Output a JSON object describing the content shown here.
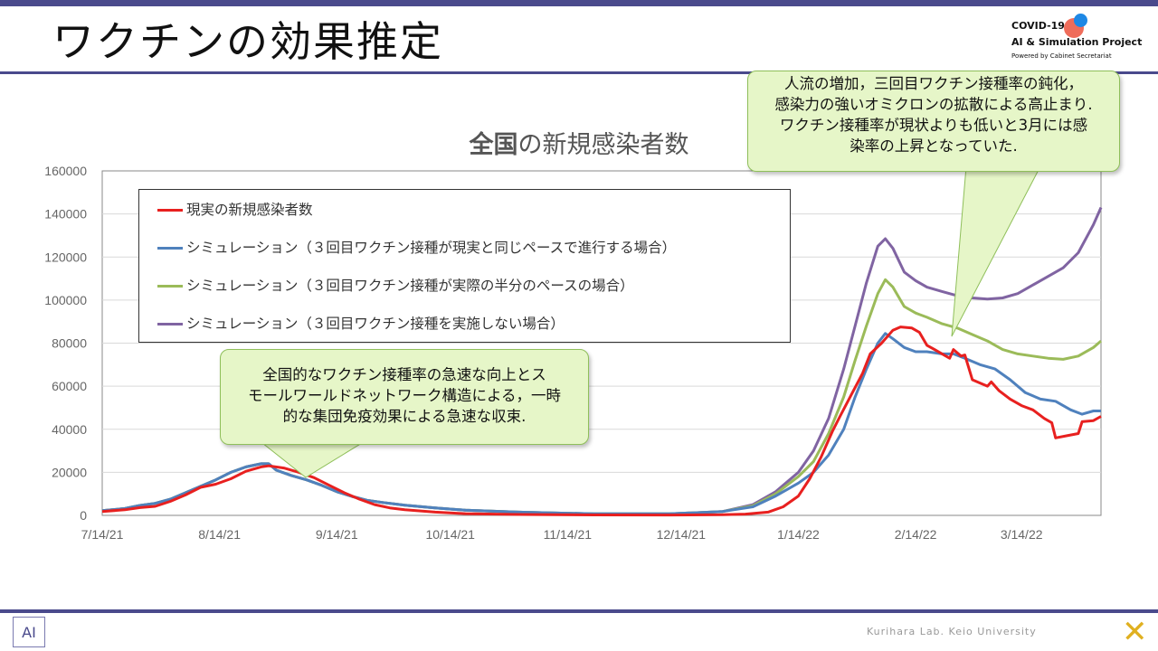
{
  "header": {
    "title": "ワクチンの効果推定",
    "logo_line1": "COVID-19",
    "logo_line2": "AI & Simulation Project",
    "logo_line3": "Powered by Cabinet Secretariat"
  },
  "callouts": {
    "right_lines": [
      "人流の増加，三回目ワクチン接種率の鈍化，",
      "感染力の強いオミクロンの拡散による高止まり.",
      "ワクチン接種率が現状よりも低いと3月には感",
      "染率の上昇となっていた."
    ],
    "left_lines": [
      "全国的なワクチン接種率の急速な向上とス",
      "モールワールドネットワーク構造による，一時",
      "的な集団免疫効果による急速な収束."
    ]
  },
  "footer": {
    "credit": "Kurihara Lab. Keio University",
    "left_logo": "AI",
    "right_logo": "✕"
  },
  "chart_data": {
    "type": "line",
    "title_bold": "全国",
    "title_rest": "の新規感染者数",
    "xlabel": "",
    "ylabel": "",
    "ylim": [
      0,
      160000
    ],
    "yticks": [
      "0",
      "20000",
      "40000",
      "60000",
      "80000",
      "100000",
      "120000",
      "140000",
      "160000"
    ],
    "xlim": [
      0,
      264
    ],
    "xtick_labels": [
      "7/14/21",
      "8/14/21",
      "9/14/21",
      "10/14/21",
      "11/14/21",
      "12/14/21",
      "1/14/22",
      "2/14/22",
      "3/14/22"
    ],
    "xtick_days": [
      0,
      31,
      62,
      92,
      123,
      153,
      184,
      215,
      243
    ],
    "grid": "horizontal",
    "legend_position": "top-left inside",
    "series": [
      {
        "name": "現実の新規感染者数",
        "color": "#e8201f",
        "points": [
          [
            0,
            1800
          ],
          [
            6,
            2600
          ],
          [
            10,
            3600
          ],
          [
            14,
            4200
          ],
          [
            18,
            6500
          ],
          [
            22,
            9500
          ],
          [
            26,
            13000
          ],
          [
            30,
            14500
          ],
          [
            34,
            17000
          ],
          [
            38,
            20500
          ],
          [
            42,
            22500
          ],
          [
            44,
            23000
          ],
          [
            48,
            22000
          ],
          [
            52,
            20000
          ],
          [
            56,
            17500
          ],
          [
            60,
            14000
          ],
          [
            64,
            10500
          ],
          [
            68,
            7500
          ],
          [
            72,
            5000
          ],
          [
            76,
            3500
          ],
          [
            80,
            2600
          ],
          [
            88,
            1500
          ],
          [
            96,
            800
          ],
          [
            110,
            400
          ],
          [
            130,
            200
          ],
          [
            150,
            180
          ],
          [
            164,
            300
          ],
          [
            170,
            600
          ],
          [
            176,
            1500
          ],
          [
            180,
            4000
          ],
          [
            184,
            9000
          ],
          [
            187,
            17000
          ],
          [
            190,
            27000
          ],
          [
            193,
            39000
          ],
          [
            195,
            46000
          ],
          [
            198,
            56000
          ],
          [
            201,
            66000
          ],
          [
            203,
            75000
          ],
          [
            206,
            80000
          ],
          [
            209,
            86000
          ],
          [
            211,
            87500
          ],
          [
            214,
            87000
          ],
          [
            216,
            85000
          ],
          [
            218,
            79000
          ],
          [
            220,
            77000
          ],
          [
            222,
            75000
          ],
          [
            224,
            73000
          ],
          [
            225,
            77000
          ],
          [
            227,
            74000
          ],
          [
            228,
            74500
          ],
          [
            230,
            63000
          ],
          [
            232,
            61500
          ],
          [
            234,
            60000
          ],
          [
            235,
            62000
          ],
          [
            237,
            58000
          ],
          [
            240,
            54000
          ],
          [
            243,
            51000
          ],
          [
            246,
            49000
          ],
          [
            249,
            45000
          ],
          [
            251,
            43000
          ],
          [
            252,
            36000
          ],
          [
            255,
            37000
          ],
          [
            258,
            38000
          ],
          [
            259,
            43500
          ],
          [
            262,
            44000
          ],
          [
            264,
            46000
          ]
        ]
      },
      {
        "name": "シミュレーション（３回目ワクチン接種が現実と同じペースで進行する場合）",
        "color": "#4f81bd",
        "points": [
          [
            0,
            2200
          ],
          [
            6,
            3200
          ],
          [
            10,
            4600
          ],
          [
            14,
            5600
          ],
          [
            18,
            7500
          ],
          [
            22,
            10500
          ],
          [
            26,
            13500
          ],
          [
            30,
            16500
          ],
          [
            34,
            20000
          ],
          [
            38,
            22500
          ],
          [
            42,
            24000
          ],
          [
            44,
            24000
          ],
          [
            46,
            21000
          ],
          [
            50,
            18500
          ],
          [
            54,
            16500
          ],
          [
            58,
            14000
          ],
          [
            62,
            11000
          ],
          [
            66,
            8800
          ],
          [
            70,
            7000
          ],
          [
            74,
            6000
          ],
          [
            80,
            4700
          ],
          [
            88,
            3500
          ],
          [
            96,
            2400
          ],
          [
            110,
            1500
          ],
          [
            130,
            700
          ],
          [
            150,
            700
          ],
          [
            164,
            1800
          ],
          [
            172,
            4000
          ],
          [
            178,
            9000
          ],
          [
            184,
            15000
          ],
          [
            188,
            20000
          ],
          [
            192,
            28000
          ],
          [
            196,
            40000
          ],
          [
            199,
            55000
          ],
          [
            202,
            68000
          ],
          [
            205,
            80000
          ],
          [
            207,
            84500
          ],
          [
            209,
            82000
          ],
          [
            212,
            78000
          ],
          [
            215,
            76000
          ],
          [
            218,
            76000
          ],
          [
            222,
            75000
          ],
          [
            225,
            75000
          ],
          [
            228,
            73000
          ],
          [
            232,
            70000
          ],
          [
            236,
            68000
          ],
          [
            240,
            63000
          ],
          [
            244,
            57000
          ],
          [
            248,
            54000
          ],
          [
            252,
            53000
          ],
          [
            256,
            49000
          ],
          [
            259,
            47000
          ],
          [
            262,
            48500
          ],
          [
            264,
            48500
          ]
        ]
      },
      {
        "name": "シミュレーション（３回目ワクチン接種が実際の半分のペースの場合）",
        "color": "#9bbb59",
        "points": [
          [
            0,
            2200
          ],
          [
            6,
            3200
          ],
          [
            10,
            4600
          ],
          [
            14,
            5600
          ],
          [
            18,
            7500
          ],
          [
            22,
            10500
          ],
          [
            26,
            13500
          ],
          [
            30,
            16500
          ],
          [
            34,
            20000
          ],
          [
            38,
            22500
          ],
          [
            42,
            24000
          ],
          [
            44,
            24000
          ],
          [
            46,
            21000
          ],
          [
            50,
            18500
          ],
          [
            54,
            16500
          ],
          [
            58,
            14000
          ],
          [
            62,
            11000
          ],
          [
            66,
            8800
          ],
          [
            70,
            7000
          ],
          [
            74,
            6000
          ],
          [
            80,
            4700
          ],
          [
            88,
            3500
          ],
          [
            96,
            2400
          ],
          [
            110,
            1500
          ],
          [
            130,
            700
          ],
          [
            150,
            700
          ],
          [
            164,
            1800
          ],
          [
            172,
            4500
          ],
          [
            178,
            10000
          ],
          [
            184,
            18000
          ],
          [
            188,
            25000
          ],
          [
            192,
            38000
          ],
          [
            196,
            55000
          ],
          [
            199,
            72000
          ],
          [
            202,
            88000
          ],
          [
            205,
            103000
          ],
          [
            207,
            109500
          ],
          [
            209,
            106000
          ],
          [
            212,
            97000
          ],
          [
            215,
            94000
          ],
          [
            218,
            92000
          ],
          [
            222,
            89000
          ],
          [
            226,
            87000
          ],
          [
            230,
            84000
          ],
          [
            234,
            81000
          ],
          [
            238,
            77000
          ],
          [
            242,
            75000
          ],
          [
            246,
            74000
          ],
          [
            250,
            73000
          ],
          [
            254,
            72500
          ],
          [
            258,
            74000
          ],
          [
            262,
            78000
          ],
          [
            264,
            81000
          ]
        ]
      },
      {
        "name": "シミュレーション（３回目ワクチン接種を実施しない場合）",
        "color": "#8064a2",
        "points": [
          [
            0,
            2200
          ],
          [
            6,
            3200
          ],
          [
            10,
            4600
          ],
          [
            14,
            5600
          ],
          [
            18,
            7500
          ],
          [
            22,
            10500
          ],
          [
            26,
            13500
          ],
          [
            30,
            16500
          ],
          [
            34,
            20000
          ],
          [
            38,
            22500
          ],
          [
            42,
            24000
          ],
          [
            44,
            24000
          ],
          [
            46,
            21000
          ],
          [
            50,
            18500
          ],
          [
            54,
            16500
          ],
          [
            58,
            14000
          ],
          [
            62,
            11000
          ],
          [
            66,
            8800
          ],
          [
            70,
            7000
          ],
          [
            74,
            6000
          ],
          [
            80,
            4700
          ],
          [
            88,
            3500
          ],
          [
            96,
            2400
          ],
          [
            110,
            1500
          ],
          [
            130,
            700
          ],
          [
            150,
            700
          ],
          [
            164,
            1800
          ],
          [
            172,
            5000
          ],
          [
            178,
            11000
          ],
          [
            184,
            20000
          ],
          [
            188,
            30000
          ],
          [
            192,
            45000
          ],
          [
            196,
            68000
          ],
          [
            199,
            88000
          ],
          [
            202,
            108000
          ],
          [
            205,
            125000
          ],
          [
            207,
            128500
          ],
          [
            209,
            124000
          ],
          [
            212,
            113000
          ],
          [
            215,
            109000
          ],
          [
            218,
            106000
          ],
          [
            222,
            104000
          ],
          [
            226,
            102000
          ],
          [
            230,
            101000
          ],
          [
            234,
            100500
          ],
          [
            238,
            101000
          ],
          [
            242,
            103000
          ],
          [
            246,
            107000
          ],
          [
            250,
            111000
          ],
          [
            254,
            115000
          ],
          [
            258,
            122000
          ],
          [
            262,
            135000
          ],
          [
            264,
            143000
          ]
        ]
      }
    ]
  }
}
